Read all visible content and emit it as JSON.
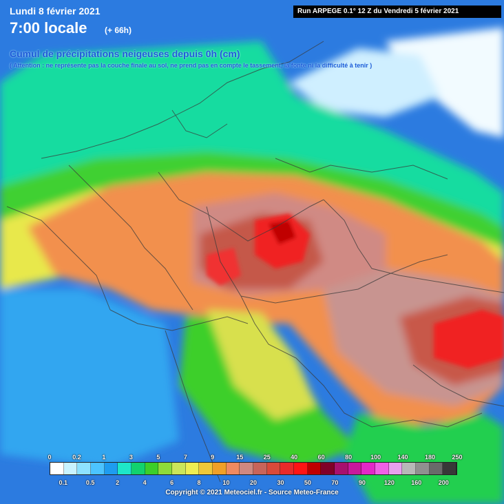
{
  "header": {
    "date": "Lundi 8 février 2021",
    "time": "7:00 locale",
    "lead": "(+ 66h)",
    "title": "Cumul de précipitations neigeuses depuis 0h (cm)",
    "note": "( Attention : ne représente pas la couche finale au sol, ne prend pas en compte le tassement, la fonte ni la difficulté à tenir )",
    "run": "Run ARPEGE 0.1° 12 Z du Vendredi 5 février 2021"
  },
  "legend": {
    "upper_labels": [
      "0",
      "0.2",
      "1",
      "3",
      "5",
      "7",
      "9",
      "15",
      "25",
      "40",
      "60",
      "80",
      "100",
      "140",
      "180",
      "250"
    ],
    "lower_labels": [
      "0.1",
      "0.5",
      "2",
      "4",
      "6",
      "8",
      "10",
      "20",
      "30",
      "50",
      "70",
      "90",
      "120",
      "160",
      "200"
    ],
    "colors": [
      "#ffffff",
      "#c9f3ff",
      "#8ee2ff",
      "#4cc4ff",
      "#1e9cf0",
      "#1ee6c8",
      "#12d26e",
      "#3ccf2a",
      "#8fdb3a",
      "#cbe65a",
      "#eeee52",
      "#f0c838",
      "#f0a028",
      "#f08a60",
      "#d08880",
      "#c8645a",
      "#d84a3a",
      "#e82a2a",
      "#ff1414",
      "#c00000",
      "#800028",
      "#a8106e",
      "#c8189c",
      "#e428c8",
      "#f060e6",
      "#e8a0ee",
      "#b8b8b8",
      "#909090",
      "#6a6a6a",
      "#383838"
    ]
  },
  "copyright": "Copyright © 2021 Meteociel.fr - Source Meteo-France"
}
